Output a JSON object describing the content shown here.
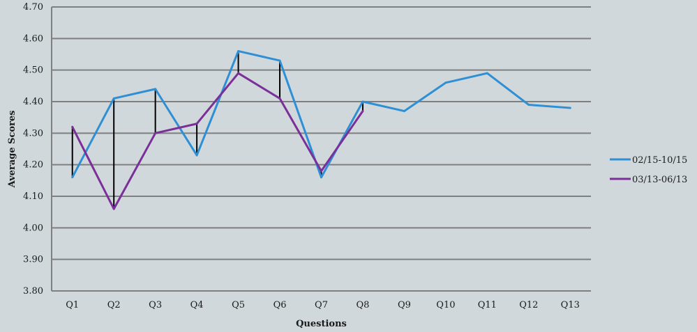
{
  "chart_data": {
    "type": "line",
    "title": "",
    "xlabel": "Questions",
    "ylabel": "Average Scores",
    "ylim": [
      3.8,
      4.7
    ],
    "y_ticks": [
      "3.80",
      "3.90",
      "4.00",
      "4.10",
      "4.20",
      "4.30",
      "4.40",
      "4.50",
      "4.60",
      "4.70"
    ],
    "categories": [
      "Q1",
      "Q2",
      "Q3",
      "Q4",
      "Q5",
      "Q6",
      "Q7",
      "Q8",
      "Q9",
      "Q10",
      "Q11",
      "Q12",
      "Q13"
    ],
    "grid": true,
    "legend_position": "right",
    "series": [
      {
        "name": "02/15-10/15",
        "color": "#2e8fd4",
        "values": [
          4.16,
          4.41,
          4.44,
          4.23,
          4.56,
          4.53,
          4.16,
          4.4,
          4.37,
          4.46,
          4.49,
          4.39,
          4.38
        ]
      },
      {
        "name": "03/13-06/13",
        "color": "#7b2f98",
        "values": [
          4.32,
          4.06,
          4.3,
          4.33,
          4.49,
          4.41,
          4.18,
          4.37,
          null,
          null,
          null,
          null,
          null
        ]
      }
    ],
    "difference_lines": true,
    "difference_line_color": "#000000"
  }
}
